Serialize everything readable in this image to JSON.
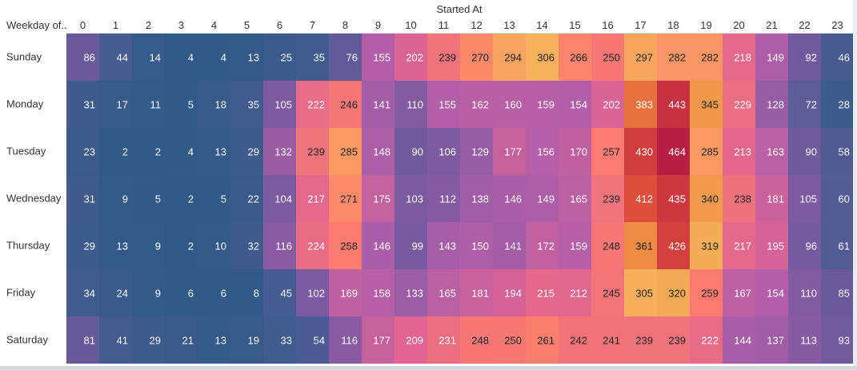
{
  "chart_data": {
    "type": "heatmap",
    "column_title": "Started At",
    "row_header": "Weekday of..",
    "x": [
      "0",
      "1",
      "2",
      "3",
      "4",
      "5",
      "6",
      "7",
      "8",
      "9",
      "10",
      "11",
      "12",
      "13",
      "14",
      "15",
      "16",
      "17",
      "18",
      "19",
      "20",
      "21",
      "22",
      "23"
    ],
    "rows": [
      "Sunday",
      "Monday",
      "Tuesday",
      "Wednesday",
      "Thursday",
      "Friday",
      "Saturday"
    ],
    "values": [
      [
        86,
        44,
        14,
        4,
        4,
        13,
        25,
        35,
        76,
        155,
        202,
        239,
        270,
        294,
        306,
        266,
        250,
        297,
        282,
        282,
        218,
        149,
        92,
        46
      ],
      [
        31,
        17,
        11,
        5,
        18,
        35,
        105,
        222,
        246,
        141,
        110,
        155,
        162,
        160,
        159,
        154,
        202,
        383,
        443,
        345,
        229,
        128,
        72,
        28
      ],
      [
        23,
        2,
        2,
        4,
        13,
        29,
        132,
        239,
        285,
        148,
        90,
        106,
        129,
        177,
        156,
        170,
        257,
        430,
        464,
        285,
        213,
        163,
        90,
        58
      ],
      [
        31,
        9,
        5,
        2,
        5,
        22,
        104,
        217,
        271,
        175,
        103,
        112,
        138,
        146,
        149,
        165,
        239,
        412,
        435,
        340,
        238,
        181,
        105,
        60
      ],
      [
        29,
        13,
        9,
        2,
        10,
        32,
        116,
        224,
        258,
        146,
        99,
        143,
        150,
        141,
        172,
        159,
        248,
        361,
        426,
        319,
        217,
        195,
        96,
        61
      ],
      [
        34,
        24,
        9,
        6,
        6,
        8,
        45,
        102,
        169,
        158,
        133,
        165,
        181,
        194,
        215,
        212,
        245,
        305,
        320,
        259,
        167,
        154,
        110,
        85
      ],
      [
        81,
        41,
        29,
        21,
        13,
        19,
        33,
        54,
        116,
        177,
        209,
        231,
        248,
        250,
        261,
        242,
        241,
        239,
        239,
        222,
        144,
        137,
        113,
        93
      ]
    ],
    "color_range": [
      0,
      464
    ],
    "color_scale": [
      "#2e5a87",
      "#4a5b92",
      "#7b5aa0",
      "#b35fa8",
      "#df6492",
      "#fb7b6f",
      "#f7b45a",
      "#ee8a42",
      "#dd4d3c",
      "#b81e44"
    ],
    "legend": "none"
  }
}
